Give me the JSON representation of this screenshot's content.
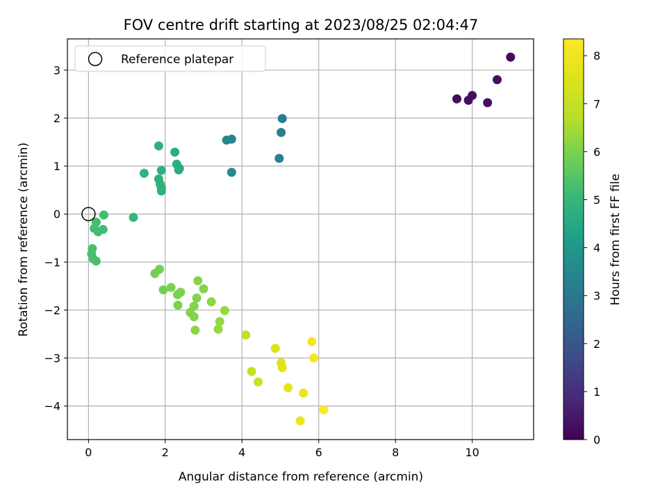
{
  "chart_data": {
    "type": "scatter",
    "title": "FOV centre drift starting at 2023/08/25 02:04:47",
    "xlabel": "Angular distance from reference (arcmin)",
    "ylabel": "Rotation from reference (arcmin)",
    "xlim": [
      -0.55,
      11.6
    ],
    "ylim": [
      -4.7,
      3.65
    ],
    "xticks": [
      0,
      2,
      4,
      6,
      8,
      10
    ],
    "yticks": [
      -4,
      -3,
      -2,
      -1,
      0,
      1,
      2,
      3
    ],
    "grid": true,
    "legend": {
      "location": "upper-left",
      "entries": [
        {
          "label": "Reference platepar",
          "marker": "open-circle"
        }
      ]
    },
    "reference_point": {
      "x": 0,
      "y": 0
    },
    "colorbar": {
      "label": "Hours from first FF file",
      "range": [
        0,
        8.35
      ],
      "ticks": [
        0,
        1,
        2,
        3,
        4,
        5,
        6,
        7,
        8
      ],
      "colormap": "viridis"
    },
    "points": [
      {
        "x": 11.0,
        "y": 3.27,
        "c": 0.2
      },
      {
        "x": 10.65,
        "y": 2.8,
        "c": 0.3
      },
      {
        "x": 9.6,
        "y": 2.4,
        "c": 0.2
      },
      {
        "x": 9.9,
        "y": 2.37,
        "c": 0.3
      },
      {
        "x": 10.0,
        "y": 2.47,
        "c": 0.3
      },
      {
        "x": 10.4,
        "y": 2.32,
        "c": 0.3
      },
      {
        "x": 5.05,
        "y": 1.99,
        "c": 3.2
      },
      {
        "x": 5.02,
        "y": 1.7,
        "c": 3.3
      },
      {
        "x": 4.97,
        "y": 1.16,
        "c": 3.3
      },
      {
        "x": 3.6,
        "y": 1.54,
        "c": 3.5
      },
      {
        "x": 3.73,
        "y": 1.56,
        "c": 3.5
      },
      {
        "x": 3.73,
        "y": 0.87,
        "c": 3.6
      },
      {
        "x": 1.83,
        "y": 1.42,
        "c": 4.8
      },
      {
        "x": 2.25,
        "y": 1.29,
        "c": 4.7
      },
      {
        "x": 2.3,
        "y": 1.04,
        "c": 4.7
      },
      {
        "x": 2.35,
        "y": 0.92,
        "c": 4.6
      },
      {
        "x": 2.37,
        "y": 0.95,
        "c": 4.6
      },
      {
        "x": 1.9,
        "y": 0.91,
        "c": 4.8
      },
      {
        "x": 1.45,
        "y": 0.85,
        "c": 4.9
      },
      {
        "x": 1.83,
        "y": 0.73,
        "c": 4.8
      },
      {
        "x": 1.87,
        "y": 0.62,
        "c": 4.8
      },
      {
        "x": 1.9,
        "y": 0.48,
        "c": 4.8
      },
      {
        "x": 1.9,
        "y": 0.55,
        "c": 4.8
      },
      {
        "x": 1.17,
        "y": -0.07,
        "c": 5.0
      },
      {
        "x": 0.4,
        "y": -0.02,
        "c": 5.2
      },
      {
        "x": 0.38,
        "y": -0.32,
        "c": 5.2
      },
      {
        "x": 0.2,
        "y": -0.17,
        "c": 5.2
      },
      {
        "x": 0.15,
        "y": -0.3,
        "c": 5.2
      },
      {
        "x": 0.25,
        "y": -0.37,
        "c": 5.2
      },
      {
        "x": 0.1,
        "y": -0.72,
        "c": 5.3
      },
      {
        "x": 0.08,
        "y": -0.83,
        "c": 5.3
      },
      {
        "x": 0.12,
        "y": -0.93,
        "c": 5.3
      },
      {
        "x": 0.2,
        "y": -0.98,
        "c": 5.3
      },
      {
        "x": 1.85,
        "y": -1.15,
        "c": 5.9
      },
      {
        "x": 1.73,
        "y": -1.24,
        "c": 5.9
      },
      {
        "x": 1.95,
        "y": -1.58,
        "c": 5.9
      },
      {
        "x": 2.15,
        "y": -1.53,
        "c": 6.0
      },
      {
        "x": 2.32,
        "y": -1.68,
        "c": 6.0
      },
      {
        "x": 2.4,
        "y": -1.63,
        "c": 6.0
      },
      {
        "x": 2.33,
        "y": -1.9,
        "c": 6.0
      },
      {
        "x": 2.85,
        "y": -1.39,
        "c": 6.1
      },
      {
        "x": 3.0,
        "y": -1.56,
        "c": 6.1
      },
      {
        "x": 2.82,
        "y": -1.75,
        "c": 6.1
      },
      {
        "x": 2.75,
        "y": -1.92,
        "c": 6.1
      },
      {
        "x": 3.2,
        "y": -1.83,
        "c": 6.2
      },
      {
        "x": 2.65,
        "y": -2.05,
        "c": 6.1
      },
      {
        "x": 2.75,
        "y": -2.14,
        "c": 6.1
      },
      {
        "x": 3.55,
        "y": -2.01,
        "c": 6.3
      },
      {
        "x": 3.42,
        "y": -2.24,
        "c": 6.3
      },
      {
        "x": 3.38,
        "y": -2.4,
        "c": 6.3
      },
      {
        "x": 2.78,
        "y": -2.42,
        "c": 6.2
      },
      {
        "x": 4.1,
        "y": -2.52,
        "c": 6.9
      },
      {
        "x": 4.25,
        "y": -3.28,
        "c": 7.1
      },
      {
        "x": 4.42,
        "y": -3.5,
        "c": 7.1
      },
      {
        "x": 4.87,
        "y": -2.8,
        "c": 7.5
      },
      {
        "x": 5.02,
        "y": -3.1,
        "c": 7.6
      },
      {
        "x": 5.05,
        "y": -3.2,
        "c": 7.6
      },
      {
        "x": 5.2,
        "y": -3.62,
        "c": 7.7
      },
      {
        "x": 5.6,
        "y": -3.73,
        "c": 7.9
      },
      {
        "x": 5.52,
        "y": -4.31,
        "c": 7.9
      },
      {
        "x": 5.82,
        "y": -2.66,
        "c": 8.1
      },
      {
        "x": 5.87,
        "y": -3.0,
        "c": 8.2
      },
      {
        "x": 6.13,
        "y": -4.08,
        "c": 8.3
      }
    ]
  }
}
